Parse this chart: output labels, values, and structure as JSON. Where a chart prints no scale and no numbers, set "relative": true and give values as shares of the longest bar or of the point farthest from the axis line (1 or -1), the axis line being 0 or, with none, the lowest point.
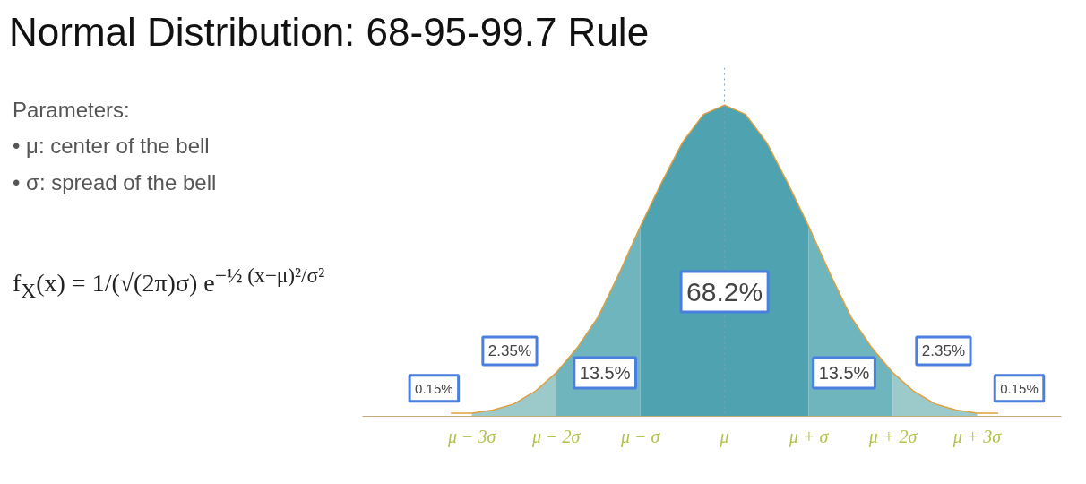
{
  "chart_data": {
    "type": "area",
    "title": "Normal Distribution: 68-95-99.7 Rule",
    "relative": true,
    "annotations": [
      "Parameters:",
      "• μ: center of the bell",
      "• σ: spread of the bell",
      "f$_{X}$(x) = 1/(√(2π)σ) e$^{−½ (x−μ)²/σ²}$",
      "68.2%",
      "13.5%",
      "13.5%",
      "2.35%",
      "2.35%",
      "0.15%",
      "0.15%"
    ],
    "series": [
      {
        "color": "#9ccaca",
        "x": [
          -3,
          -2.75,
          -2.5,
          -2.25,
          -2
        ],
        "values": [
          0.01,
          0.02,
          0.04,
          0.08,
          0.14
        ]
      },
      {
        "color": "#6fb5bd",
        "x": [
          -2,
          -1.75,
          -1.5,
          -1.25,
          -1
        ],
        "values": [
          0.14,
          0.22,
          0.32,
          0.46,
          0.61
        ]
      },
      {
        "color": "#4fa3b1",
        "x": [
          -1,
          -0.75,
          -0.5,
          -0.25,
          0,
          0.25,
          0.5,
          0.75,
          1
        ],
        "values": [
          0.61,
          0.75,
          0.88,
          0.97,
          1,
          0.97,
          0.88,
          0.75,
          0.61
        ]
      },
      {
        "color": "#6fb5bd",
        "x": [
          1,
          1.25,
          1.5,
          1.75,
          2
        ],
        "values": [
          0.61,
          0.46,
          0.32,
          0.22,
          0.14
        ]
      },
      {
        "color": "#9ccaca",
        "x": [
          2,
          2.25,
          2.5,
          2.75,
          3
        ],
        "values": [
          0.14,
          0.08,
          0.04,
          0.02,
          0.01
        ]
      },
      {
        "type": "line",
        "color": "#e0a040",
        "x": [
          -3.25,
          -3,
          -2.75,
          -2.5,
          -2.25,
          -2,
          -1.75,
          -1.5,
          -1.25,
          -1,
          -0.75,
          -0.5,
          -0.25,
          0,
          0.25,
          0.5,
          0.75,
          1,
          1.25,
          1.5,
          1.75,
          2,
          2.25,
          2.5,
          2.75,
          3,
          3.25
        ],
        "values": [
          0.01,
          0.01,
          0.02,
          0.04,
          0.08,
          0.14,
          0.22,
          0.32,
          0.46,
          0.61,
          0.75,
          0.88,
          0.97,
          1,
          0.97,
          0.88,
          0.75,
          0.61,
          0.46,
          0.32,
          0.22,
          0.14,
          0.08,
          0.04,
          0.02,
          0.01,
          0.01
        ]
      }
    ],
    "xlim": [
      -4.3,
      4
    ],
    "xticks": [
      {
        "value": -3,
        "label": "μ − 3σ"
      },
      {
        "value": -2,
        "label": "μ − 2σ"
      },
      {
        "value": -1,
        "label": "μ − σ"
      },
      {
        "value": 0,
        "label": "μ"
      },
      {
        "value": 1,
        "label": "μ + σ"
      },
      {
        "value": 2,
        "label": "μ + 2σ"
      },
      {
        "value": 3,
        "label": "μ + 3σ"
      }
    ],
    "ref_lines": [
      {
        "axis": "x",
        "value": 0,
        "color": "#7aa0c0",
        "line_style": "dotted"
      }
    ]
  }
}
